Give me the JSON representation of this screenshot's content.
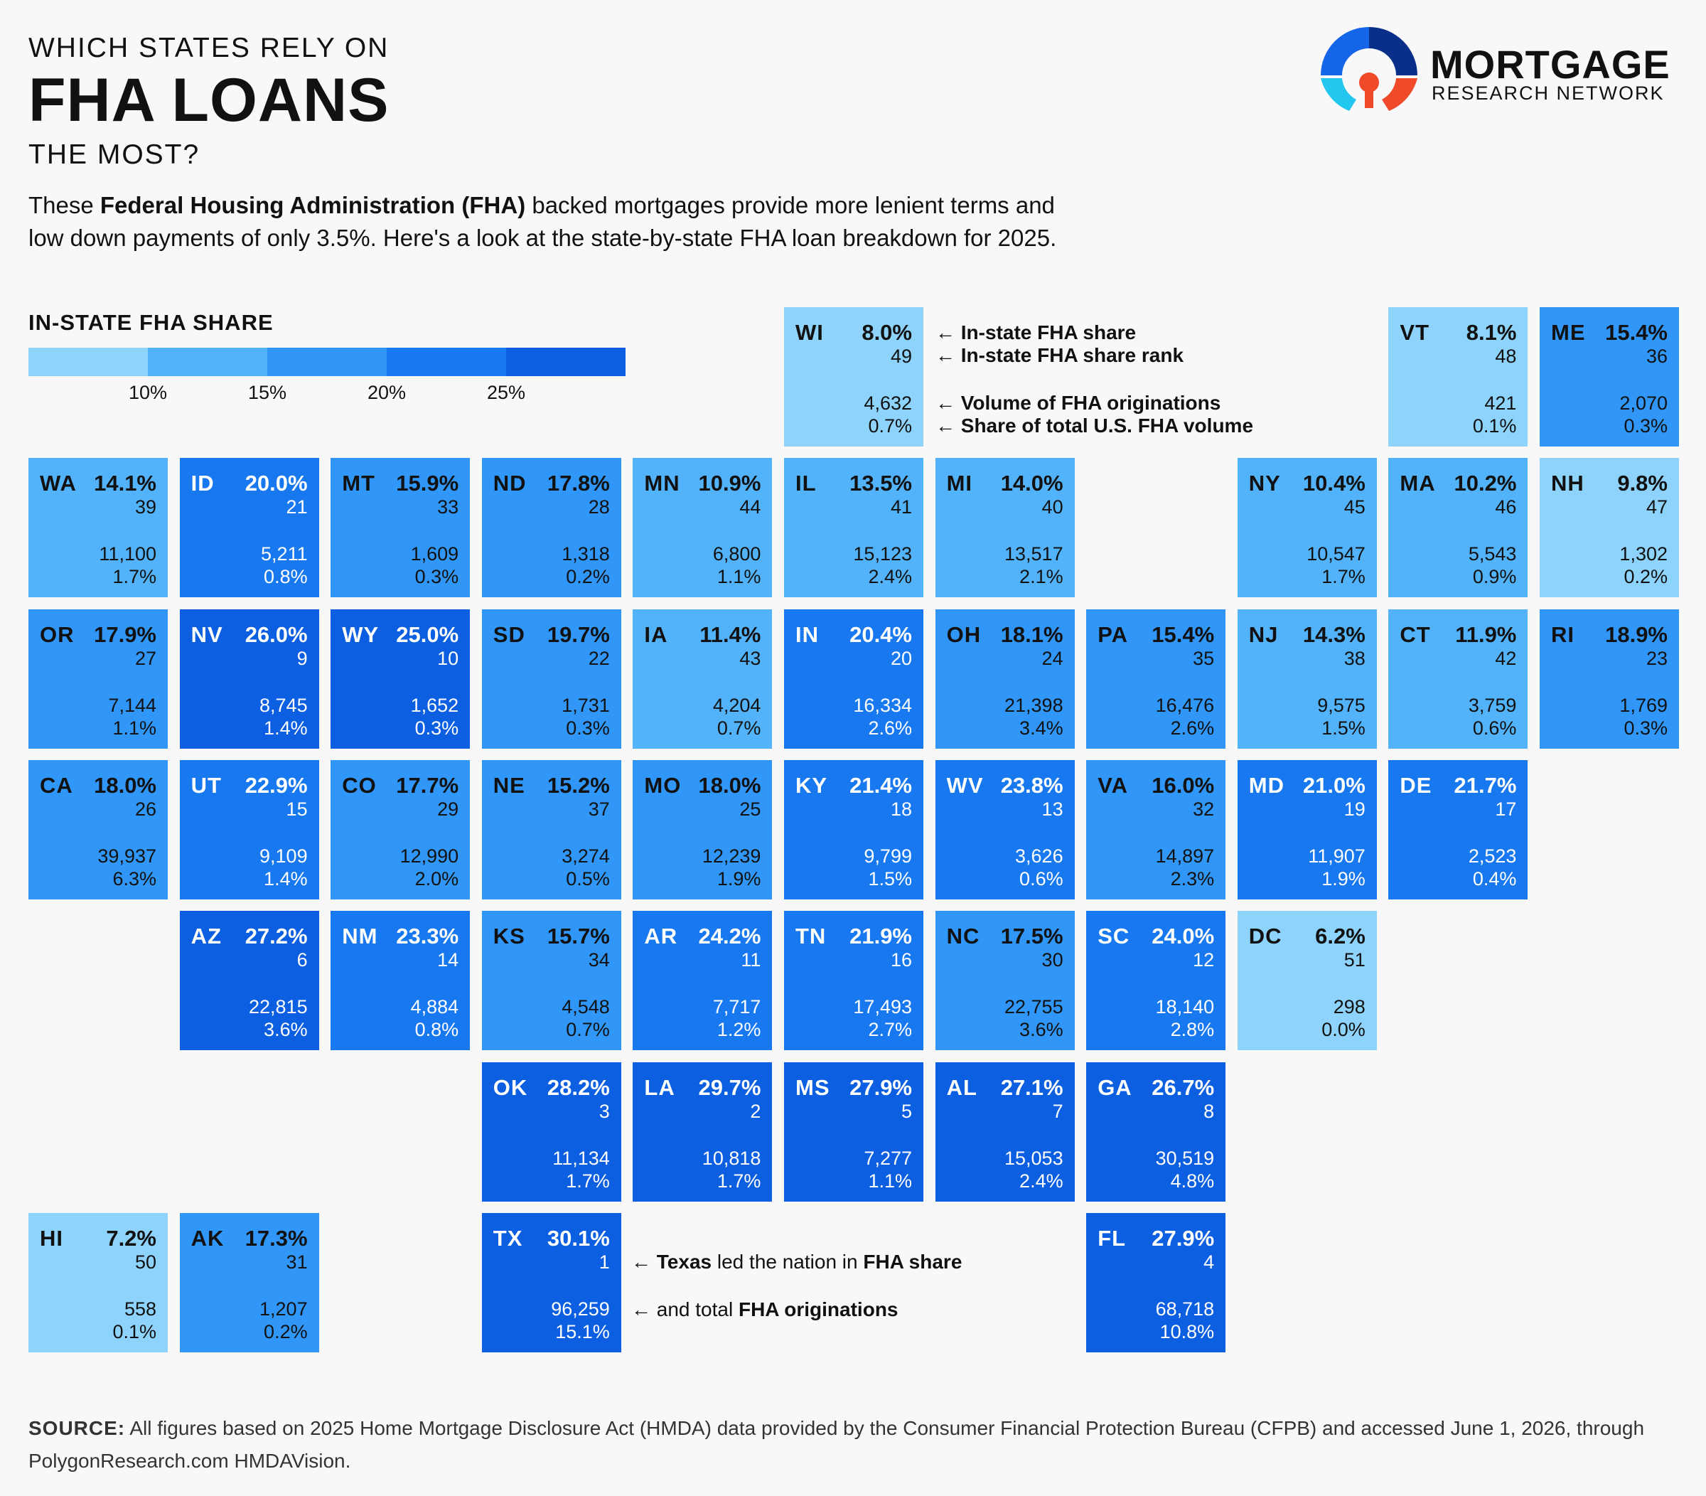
{
  "header": {
    "supertitle": "WHICH STATES RELY ON",
    "title": "FHA LOANS",
    "subtitle": "THE MOST?",
    "description": {
      "p1": "These ",
      "bold": "Federal Housing Administration (FHA)",
      "p2": " backed mortgages provide more lenient terms and",
      "line2": "low down payments of only 3.5%. Here's a look at the state-by-state FHA loan breakdown for 2025."
    }
  },
  "logo": {
    "name": "MORTGAGE",
    "sub": "RESEARCH NETWORK",
    "colors": [
      "#1565e8",
      "#0a2f8a",
      "#22c7f0",
      "#f04a2a"
    ]
  },
  "legend": {
    "title": "IN-STATE FHA SHARE",
    "ticks": [
      "10%",
      "15%",
      "20%",
      "25%"
    ],
    "colors": [
      "#8dd3fb",
      "#52b3fa",
      "#3096f7",
      "#1878f0",
      "#0b5fe0"
    ]
  },
  "key": {
    "share": "← In-state FHA share",
    "rank": "← In-state FHA share rank",
    "volume": "← Volume of FHA originations",
    "total": "← Share of total U.S. FHA volume"
  },
  "texas_note": {
    "line1_pre": "← ",
    "line1_b1": "Texas",
    "line1_mid": " led the nation in ",
    "line1_b2": "FHA share",
    "line2_pre": "← and total ",
    "line2_b": "FHA originations"
  },
  "chart_data": {
    "type": "table",
    "columns": [
      "state",
      "in_state_fha_share",
      "rank",
      "fha_originations",
      "share_of_us_fha_volume"
    ],
    "states": [
      {
        "abbr": "WI",
        "share": "8.0%",
        "rank": "49",
        "volume": "4,632",
        "total": "0.7%",
        "value": 8.0
      },
      {
        "abbr": "VT",
        "share": "8.1%",
        "rank": "48",
        "volume": "421",
        "total": "0.1%",
        "value": 8.1
      },
      {
        "abbr": "ME",
        "share": "15.4%",
        "rank": "36",
        "volume": "2,070",
        "total": "0.3%",
        "value": 15.4
      },
      {
        "abbr": "WA",
        "share": "14.1%",
        "rank": "39",
        "volume": "11,100",
        "total": "1.7%",
        "value": 14.1
      },
      {
        "abbr": "ID",
        "share": "20.0%",
        "rank": "21",
        "volume": "5,211",
        "total": "0.8%",
        "value": 20.0
      },
      {
        "abbr": "MT",
        "share": "15.9%",
        "rank": "33",
        "volume": "1,609",
        "total": "0.3%",
        "value": 15.9
      },
      {
        "abbr": "ND",
        "share": "17.8%",
        "rank": "28",
        "volume": "1,318",
        "total": "0.2%",
        "value": 17.8
      },
      {
        "abbr": "MN",
        "share": "10.9%",
        "rank": "44",
        "volume": "6,800",
        "total": "1.1%",
        "value": 10.9
      },
      {
        "abbr": "IL",
        "share": "13.5%",
        "rank": "41",
        "volume": "15,123",
        "total": "2.4%",
        "value": 13.5
      },
      {
        "abbr": "MI",
        "share": "14.0%",
        "rank": "40",
        "volume": "13,517",
        "total": "2.1%",
        "value": 14.0
      },
      {
        "abbr": "NY",
        "share": "10.4%",
        "rank": "45",
        "volume": "10,547",
        "total": "1.7%",
        "value": 10.4
      },
      {
        "abbr": "MA",
        "share": "10.2%",
        "rank": "46",
        "volume": "5,543",
        "total": "0.9%",
        "value": 10.2
      },
      {
        "abbr": "NH",
        "share": "9.8%",
        "rank": "47",
        "volume": "1,302",
        "total": "0.2%",
        "value": 9.8
      },
      {
        "abbr": "OR",
        "share": "17.9%",
        "rank": "27",
        "volume": "7,144",
        "total": "1.1%",
        "value": 17.9
      },
      {
        "abbr": "NV",
        "share": "26.0%",
        "rank": "9",
        "volume": "8,745",
        "total": "1.4%",
        "value": 26.0
      },
      {
        "abbr": "WY",
        "share": "25.0%",
        "rank": "10",
        "volume": "1,652",
        "total": "0.3%",
        "value": 25.0
      },
      {
        "abbr": "SD",
        "share": "19.7%",
        "rank": "22",
        "volume": "1,731",
        "total": "0.3%",
        "value": 19.7
      },
      {
        "abbr": "IA",
        "share": "11.4%",
        "rank": "43",
        "volume": "4,204",
        "total": "0.7%",
        "value": 11.4
      },
      {
        "abbr": "IN",
        "share": "20.4%",
        "rank": "20",
        "volume": "16,334",
        "total": "2.6%",
        "value": 20.4
      },
      {
        "abbr": "OH",
        "share": "18.1%",
        "rank": "24",
        "volume": "21,398",
        "total": "3.4%",
        "value": 18.1
      },
      {
        "abbr": "PA",
        "share": "15.4%",
        "rank": "35",
        "volume": "16,476",
        "total": "2.6%",
        "value": 15.4
      },
      {
        "abbr": "NJ",
        "share": "14.3%",
        "rank": "38",
        "volume": "9,575",
        "total": "1.5%",
        "value": 14.3
      },
      {
        "abbr": "CT",
        "share": "11.9%",
        "rank": "42",
        "volume": "3,759",
        "total": "0.6%",
        "value": 11.9
      },
      {
        "abbr": "RI",
        "share": "18.9%",
        "rank": "23",
        "volume": "1,769",
        "total": "0.3%",
        "value": 18.9
      },
      {
        "abbr": "CA",
        "share": "18.0%",
        "rank": "26",
        "volume": "39,937",
        "total": "6.3%",
        "value": 18.0
      },
      {
        "abbr": "UT",
        "share": "22.9%",
        "rank": "15",
        "volume": "9,109",
        "total": "1.4%",
        "value": 22.9
      },
      {
        "abbr": "CO",
        "share": "17.7%",
        "rank": "29",
        "volume": "12,990",
        "total": "2.0%",
        "value": 17.7
      },
      {
        "abbr": "NE",
        "share": "15.2%",
        "rank": "37",
        "volume": "3,274",
        "total": "0.5%",
        "value": 15.2
      },
      {
        "abbr": "MO",
        "share": "18.0%",
        "rank": "25",
        "volume": "12,239",
        "total": "1.9%",
        "value": 18.0
      },
      {
        "abbr": "KY",
        "share": "21.4%",
        "rank": "18",
        "volume": "9,799",
        "total": "1.5%",
        "value": 21.4
      },
      {
        "abbr": "WV",
        "share": "23.8%",
        "rank": "13",
        "volume": "3,626",
        "total": "0.6%",
        "value": 23.8
      },
      {
        "abbr": "VA",
        "share": "16.0%",
        "rank": "32",
        "volume": "14,897",
        "total": "2.3%",
        "value": 16.0
      },
      {
        "abbr": "MD",
        "share": "21.0%",
        "rank": "19",
        "volume": "11,907",
        "total": "1.9%",
        "value": 21.0
      },
      {
        "abbr": "DE",
        "share": "21.7%",
        "rank": "17",
        "volume": "2,523",
        "total": "0.4%",
        "value": 21.7
      },
      {
        "abbr": "AZ",
        "share": "27.2%",
        "rank": "6",
        "volume": "22,815",
        "total": "3.6%",
        "value": 27.2
      },
      {
        "abbr": "NM",
        "share": "23.3%",
        "rank": "14",
        "volume": "4,884",
        "total": "0.8%",
        "value": 23.3
      },
      {
        "abbr": "KS",
        "share": "15.7%",
        "rank": "34",
        "volume": "4,548",
        "total": "0.7%",
        "value": 15.7
      },
      {
        "abbr": "AR",
        "share": "24.2%",
        "rank": "11",
        "volume": "7,717",
        "total": "1.2%",
        "value": 24.2
      },
      {
        "abbr": "TN",
        "share": "21.9%",
        "rank": "16",
        "volume": "17,493",
        "total": "2.7%",
        "value": 21.9
      },
      {
        "abbr": "NC",
        "share": "17.5%",
        "rank": "30",
        "volume": "22,755",
        "total": "3.6%",
        "value": 17.5
      },
      {
        "abbr": "SC",
        "share": "24.0%",
        "rank": "12",
        "volume": "18,140",
        "total": "2.8%",
        "value": 24.0
      },
      {
        "abbr": "DC",
        "share": "6.2%",
        "rank": "51",
        "volume": "298",
        "total": "0.0%",
        "value": 6.2
      },
      {
        "abbr": "OK",
        "share": "28.2%",
        "rank": "3",
        "volume": "11,134",
        "total": "1.7%",
        "value": 28.2
      },
      {
        "abbr": "LA",
        "share": "29.7%",
        "rank": "2",
        "volume": "10,818",
        "total": "1.7%",
        "value": 29.7
      },
      {
        "abbr": "MS",
        "share": "27.9%",
        "rank": "5",
        "volume": "7,277",
        "total": "1.1%",
        "value": 27.9
      },
      {
        "abbr": "AL",
        "share": "27.1%",
        "rank": "7",
        "volume": "15,053",
        "total": "2.4%",
        "value": 27.1
      },
      {
        "abbr": "GA",
        "share": "26.7%",
        "rank": "8",
        "volume": "30,519",
        "total": "4.8%",
        "value": 26.7
      },
      {
        "abbr": "HI",
        "share": "7.2%",
        "rank": "50",
        "volume": "558",
        "total": "0.1%",
        "value": 7.2
      },
      {
        "abbr": "AK",
        "share": "17.3%",
        "rank": "31",
        "volume": "1,207",
        "total": "0.2%",
        "value": 17.3
      },
      {
        "abbr": "TX",
        "share": "30.1%",
        "rank": "1",
        "volume": "96,259",
        "total": "15.1%",
        "value": 30.1
      },
      {
        "abbr": "FL",
        "share": "27.9%",
        "rank": "4",
        "volume": "68,718",
        "total": "10.8%",
        "value": 27.9
      }
    ]
  },
  "source": {
    "label": "SOURCE:",
    "text": " All figures based on 2025 Home Mortgage Disclosure Act (HMDA) data provided by the Consumer Financial Protection Bureau (CFPB) and accessed June 1, 2026, through PolygonResearch.com HMDAVision."
  }
}
